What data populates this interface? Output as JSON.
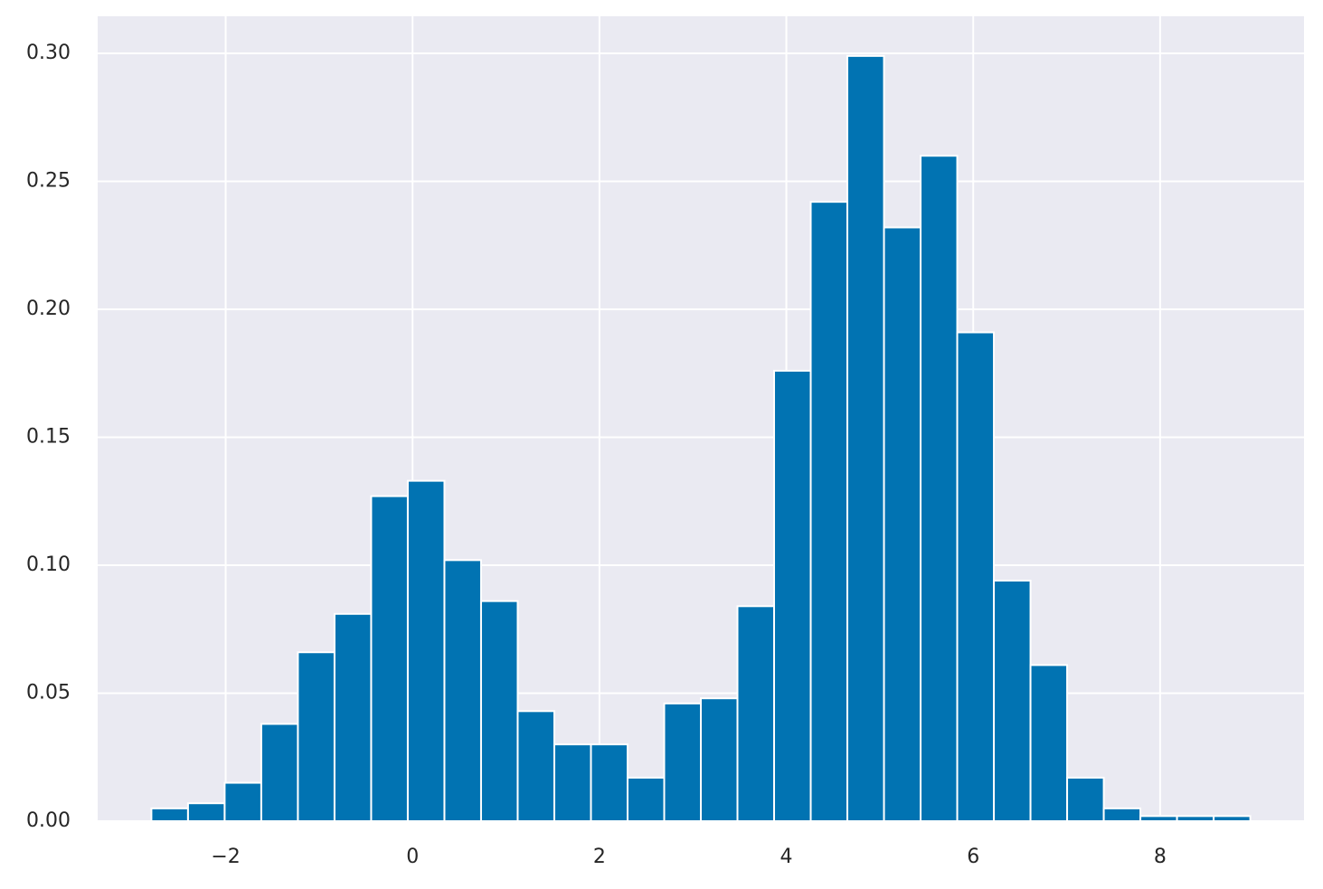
{
  "chart_data": {
    "type": "histogram",
    "bins": [
      -2.795,
      -2.403,
      -2.011,
      -1.619,
      -1.227,
      -0.835,
      -0.443,
      -0.051,
      0.341,
      0.733,
      1.125,
      1.517,
      1.909,
      2.301,
      2.693,
      3.085,
      3.477,
      3.869,
      4.261,
      4.653,
      5.045,
      5.437,
      5.829,
      6.221,
      6.613,
      7.005,
      7.397,
      7.789,
      8.181,
      8.573,
      8.965
    ],
    "values": [
      0.005,
      0.007,
      0.015,
      0.038,
      0.066,
      0.081,
      0.127,
      0.133,
      0.102,
      0.086,
      0.043,
      0.03,
      0.03,
      0.017,
      0.046,
      0.048,
      0.084,
      0.176,
      0.242,
      0.299,
      0.232,
      0.26,
      0.191,
      0.094,
      0.061,
      0.017,
      0.005,
      0.002,
      0.002,
      0.002
    ],
    "color": "#0173b2",
    "xlim": [
      -3.37,
      9.54
    ],
    "ylim": [
      0,
      0.3145
    ],
    "xticks": [
      {
        "value": -2,
        "label": "−2"
      },
      0,
      2,
      4,
      6,
      8
    ],
    "yticks": [
      {
        "value": 0,
        "label": "0.00"
      },
      {
        "value": 0.05,
        "label": "0.05"
      },
      {
        "value": 0.1,
        "label": "0.10"
      },
      {
        "value": 0.15,
        "label": "0.15"
      },
      {
        "value": 0.2,
        "label": "0.20"
      },
      {
        "value": 0.25,
        "label": "0.25"
      },
      {
        "value": 0.3,
        "label": "0.30"
      }
    ],
    "grid": true
  }
}
